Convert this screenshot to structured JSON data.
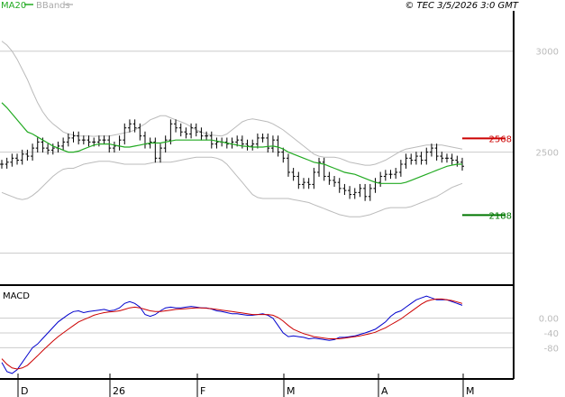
{
  "header": {
    "legend_ma": "MA20",
    "legend_bb": "BBands",
    "copyright": "© TEC 3/5/2026 3:0 GMT"
  },
  "panels": {
    "macd_label": "MACD"
  },
  "chart_data": [
    {
      "type": "candlestick",
      "title": "",
      "ylim": [
        1850,
        3200
      ],
      "yticks": [
        {
          "value": 3000,
          "label": "3000"
        },
        {
          "value": 2500,
          "label": "2500"
        }
      ],
      "x_labels": [
        "D",
        "26",
        "F",
        "M",
        "A",
        "M"
      ],
      "grid": true,
      "series": [
        {
          "name": "MA20",
          "color": "#22aa22",
          "values": [
            2745,
            2720,
            2690,
            2660,
            2630,
            2600,
            2590,
            2575,
            2560,
            2545,
            2530,
            2520,
            2510,
            2500,
            2500,
            2505,
            2515,
            2525,
            2535,
            2540,
            2540,
            2540,
            2535,
            2530,
            2525,
            2525,
            2530,
            2535,
            2540,
            2545,
            2545,
            2545,
            2550,
            2555,
            2560,
            2560,
            2560,
            2560,
            2560,
            2560,
            2560,
            2560,
            2555,
            2550,
            2545,
            2540,
            2535,
            2530,
            2528,
            2525,
            2525,
            2525,
            2528,
            2530,
            2525,
            2515,
            2500,
            2490,
            2480,
            2470,
            2460,
            2450,
            2445,
            2440,
            2430,
            2420,
            2410,
            2400,
            2395,
            2390,
            2380,
            2370,
            2360,
            2350,
            2345,
            2345,
            2345,
            2345,
            2345,
            2350,
            2360,
            2370,
            2380,
            2390,
            2400,
            2410,
            2420,
            2430,
            2435,
            2440,
            2440
          ]
        },
        {
          "name": "BBands upper",
          "color": "#bbbbbb",
          "values": [
            3050,
            3030,
            3000,
            2960,
            2910,
            2860,
            2800,
            2745,
            2700,
            2665,
            2640,
            2620,
            2600,
            2590,
            2585,
            2580,
            2580,
            2580,
            2578,
            2580,
            2580,
            2580,
            2585,
            2590,
            2595,
            2600,
            2610,
            2625,
            2640,
            2660,
            2670,
            2680,
            2680,
            2670,
            2660,
            2650,
            2640,
            2625,
            2610,
            2600,
            2590,
            2585,
            2582,
            2580,
            2590,
            2610,
            2630,
            2650,
            2660,
            2665,
            2660,
            2655,
            2650,
            2640,
            2625,
            2610,
            2590,
            2570,
            2550,
            2530,
            2510,
            2490,
            2480,
            2475,
            2475,
            2475,
            2470,
            2460,
            2450,
            2445,
            2440,
            2435,
            2435,
            2440,
            2450,
            2460,
            2475,
            2490,
            2505,
            2515,
            2520,
            2525,
            2530,
            2535,
            2535,
            2535,
            2535,
            2530,
            2525,
            2520,
            2515
          ]
        },
        {
          "name": "BBands lower",
          "color": "#bbbbbb",
          "values": [
            2300,
            2290,
            2280,
            2270,
            2265,
            2270,
            2285,
            2305,
            2330,
            2355,
            2380,
            2400,
            2415,
            2420,
            2420,
            2430,
            2440,
            2445,
            2450,
            2455,
            2455,
            2455,
            2450,
            2445,
            2440,
            2440,
            2440,
            2440,
            2440,
            2445,
            2450,
            2450,
            2450,
            2450,
            2455,
            2460,
            2465,
            2470,
            2475,
            2475,
            2475,
            2475,
            2470,
            2460,
            2440,
            2410,
            2380,
            2350,
            2320,
            2290,
            2275,
            2270,
            2270,
            2270,
            2270,
            2270,
            2270,
            2265,
            2260,
            2255,
            2250,
            2240,
            2230,
            2220,
            2210,
            2200,
            2190,
            2185,
            2180,
            2180,
            2180,
            2185,
            2190,
            2200,
            2210,
            2220,
            2225,
            2225,
            2225,
            2225,
            2230,
            2240,
            2250,
            2260,
            2270,
            2280,
            2295,
            2310,
            2325,
            2335,
            2345
          ]
        }
      ],
      "closes": [
        2440,
        2450,
        2470,
        2460,
        2490,
        2480,
        2520,
        2550,
        2520,
        2510,
        2520,
        2530,
        2550,
        2570,
        2580,
        2560,
        2560,
        2550,
        2550,
        2560,
        2560,
        2520,
        2530,
        2560,
        2620,
        2640,
        2620,
        2580,
        2540,
        2550,
        2470,
        2520,
        2560,
        2640,
        2620,
        2600,
        2590,
        2620,
        2600,
        2580,
        2580,
        2540,
        2550,
        2550,
        2540,
        2550,
        2560,
        2540,
        2530,
        2540,
        2570,
        2570,
        2520,
        2560,
        2500,
        2470,
        2400,
        2380,
        2340,
        2350,
        2340,
        2400,
        2450,
        2380,
        2360,
        2350,
        2320,
        2310,
        2290,
        2300,
        2320,
        2280,
        2320,
        2350,
        2380,
        2390,
        2390,
        2400,
        2440,
        2470,
        2460,
        2480,
        2460,
        2500,
        2520,
        2480,
        2470,
        2470,
        2460,
        2450,
        2430
      ],
      "levels": [
        {
          "label": "2568",
          "value": 2568,
          "color": "#cc0000"
        },
        {
          "label": "2188",
          "value": 2188,
          "color": "#007700"
        }
      ]
    },
    {
      "type": "line",
      "title": "MACD",
      "ylim": [
        -160,
        80
      ],
      "yticks": [
        {
          "value": 0,
          "label": "0.00"
        },
        {
          "value": -40,
          "label": "-40"
        },
        {
          "value": -80,
          "label": "-80"
        }
      ],
      "grid": true,
      "series": [
        {
          "name": "MACD",
          "color": "#0000cc",
          "values": [
            -120,
            -145,
            -150,
            -140,
            -120,
            -100,
            -80,
            -70,
            -55,
            -40,
            -25,
            -10,
            0,
            10,
            18,
            20,
            15,
            18,
            20,
            22,
            24,
            20,
            22,
            28,
            40,
            45,
            40,
            30,
            10,
            5,
            10,
            20,
            28,
            30,
            28,
            28,
            30,
            32,
            30,
            28,
            28,
            25,
            20,
            18,
            15,
            12,
            12,
            10,
            8,
            8,
            10,
            12,
            8,
            0,
            -20,
            -40,
            -50,
            -48,
            -50,
            -52,
            -56,
            -54,
            -56,
            -58,
            -60,
            -58,
            -52,
            -52,
            -50,
            -48,
            -44,
            -40,
            -35,
            -30,
            -20,
            -10,
            5,
            15,
            20,
            30,
            40,
            50,
            55,
            60,
            55,
            50,
            50,
            50,
            45,
            40,
            35
          ]
        },
        {
          "name": "Signal",
          "color": "#cc0000",
          "values": [
            -110,
            -125,
            -135,
            -138,
            -135,
            -128,
            -115,
            -102,
            -88,
            -75,
            -62,
            -50,
            -40,
            -30,
            -20,
            -10,
            -4,
            2,
            8,
            12,
            15,
            17,
            18,
            20,
            24,
            28,
            30,
            28,
            24,
            20,
            18,
            18,
            20,
            22,
            24,
            25,
            26,
            27,
            28,
            28,
            27,
            26,
            24,
            22,
            20,
            18,
            16,
            14,
            12,
            10,
            10,
            10,
            10,
            8,
            2,
            -8,
            -20,
            -30,
            -36,
            -42,
            -46,
            -50,
            -52,
            -54,
            -56,
            -56,
            -56,
            -54,
            -52,
            -50,
            -48,
            -45,
            -42,
            -38,
            -32,
            -26,
            -18,
            -10,
            -2,
            8,
            18,
            28,
            38,
            46,
            50,
            52,
            52,
            50,
            48,
            44,
            40
          ]
        }
      ]
    }
  ]
}
